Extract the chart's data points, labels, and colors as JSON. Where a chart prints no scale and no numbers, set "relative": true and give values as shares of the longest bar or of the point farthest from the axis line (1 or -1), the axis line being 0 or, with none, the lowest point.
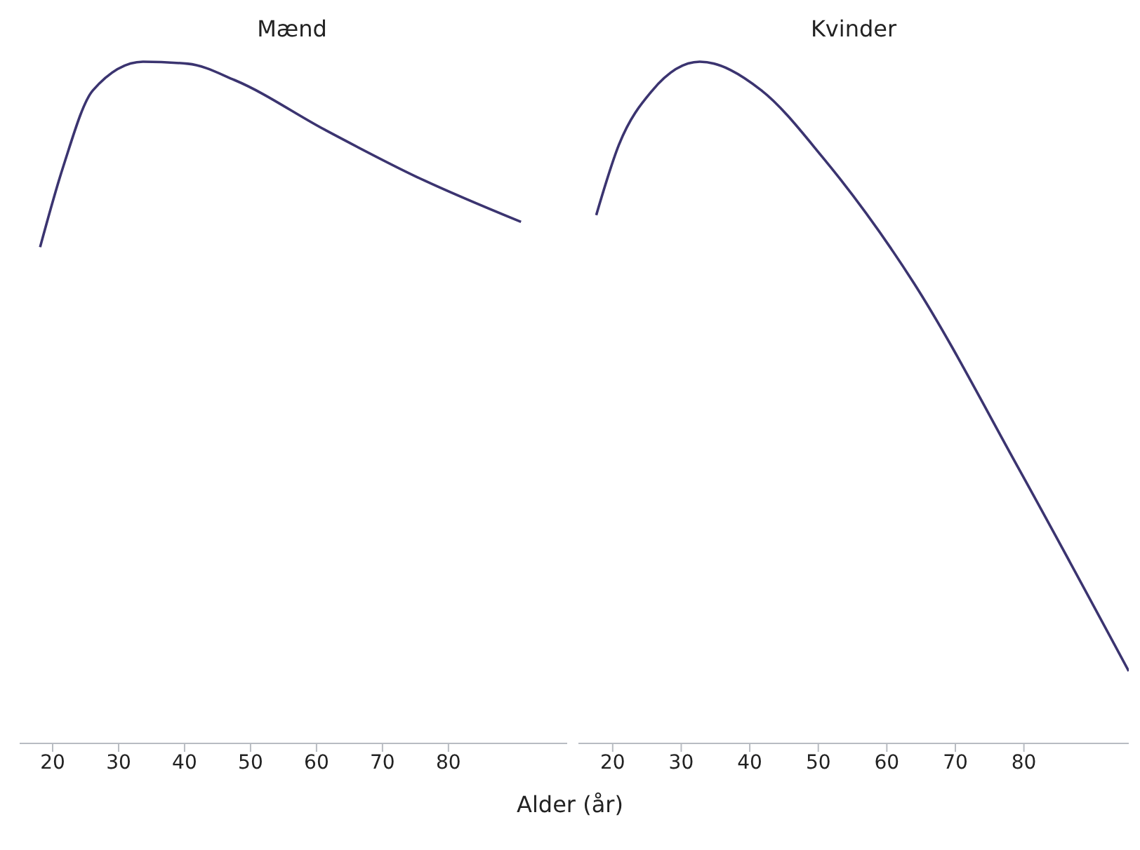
{
  "chart_data": [
    {
      "type": "line",
      "title": "Mænd",
      "xlabel": "Alder (år)",
      "relative": true,
      "xlim": [
        15,
        98
      ],
      "xticks": [
        20,
        30,
        40,
        50,
        60,
        70,
        80
      ],
      "series": [
        {
          "color": "#3b3470",
          "x": [
            18.1,
            21.6,
            26.1,
            33.7,
            40.5,
            47.6,
            61.3,
            75.2,
            91
          ],
          "values": [
            0.728,
            0.846,
            0.958,
            1,
            0.997,
            0.973,
            0.9,
            0.831,
            0.765
          ]
        }
      ]
    },
    {
      "type": "line",
      "title": "Kvinder",
      "relative": true,
      "xlim": [
        15,
        95.3
      ],
      "xticks": [
        20,
        30,
        40,
        50,
        60,
        70,
        80
      ],
      "series": [
        {
          "color": "#3b3470",
          "x": [
            17.6,
            20.9,
            25.8,
            32.7,
            41.7,
            50.7,
            63.9,
            79.2,
            95.3
          ],
          "values": [
            0.775,
            0.878,
            0.958,
            1,
            0.958,
            0.859,
            0.676,
            0.404,
            0.106
          ]
        }
      ]
    }
  ]
}
